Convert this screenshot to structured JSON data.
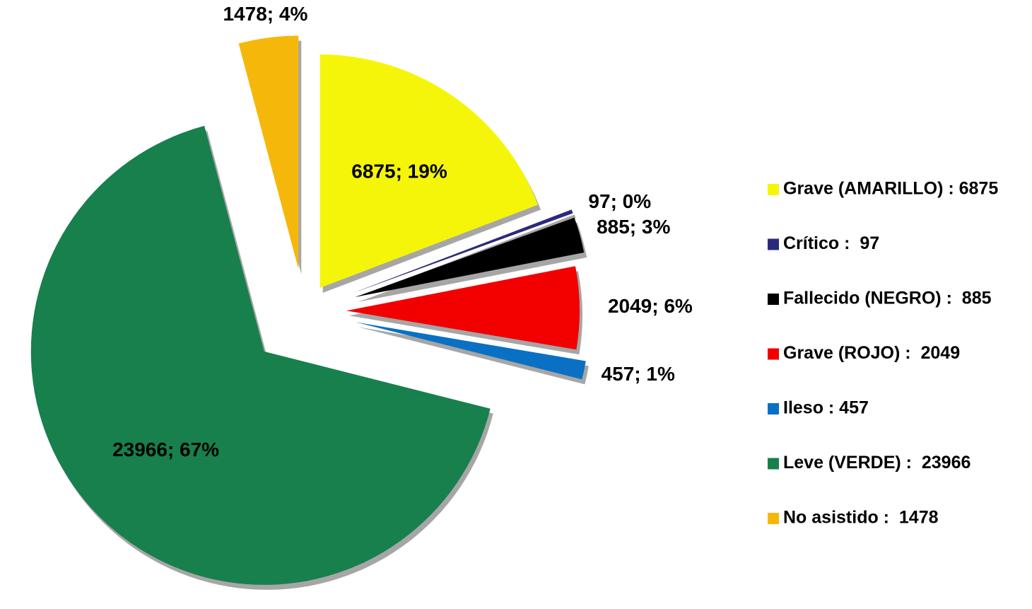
{
  "chart_data": {
    "type": "pie",
    "categories": [
      "Grave (AMARILLO) : 6875",
      "Crítico :  97",
      "Fallecido (NEGRO) :  885",
      "Grave (ROJO) :  2049",
      "Ileso : 457",
      "Leve (VERDE) :  23966",
      "No asistido :  1478"
    ],
    "values": [
      6875,
      97,
      885,
      2049,
      457,
      23966,
      1478
    ],
    "value_labels": [
      "6875; 19%",
      "97; 0%",
      "885; 3%",
      "2049; 6%",
      "457; 1%",
      "23966; 67%",
      "1478; 4%"
    ],
    "colors": [
      "#f5f50a",
      "#2a2a7c",
      "#000000",
      "#f20000",
      "#0a70c4",
      "#17804d",
      "#f5b80a"
    ],
    "legend": "right"
  }
}
